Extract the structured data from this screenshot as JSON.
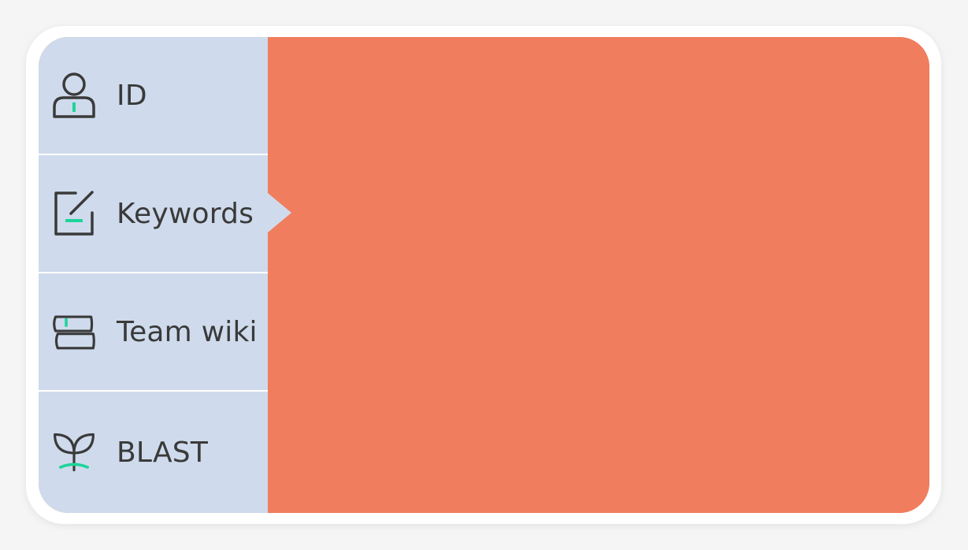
{
  "sidebar": {
    "items": [
      {
        "label": "ID",
        "icon": "user-icon"
      },
      {
        "label": "Keywords",
        "icon": "edit-icon",
        "selected": true
      },
      {
        "label": "Team wiki",
        "icon": "books-icon"
      },
      {
        "label": "BLAST",
        "icon": "sprout-icon"
      }
    ]
  },
  "colors": {
    "sidebar_bg": "#cfdbec",
    "content_bg": "#f07d5d",
    "icon_stroke": "#3a3a3a",
    "icon_accent": "#1ed49a",
    "card_bg": "#ffffff"
  }
}
